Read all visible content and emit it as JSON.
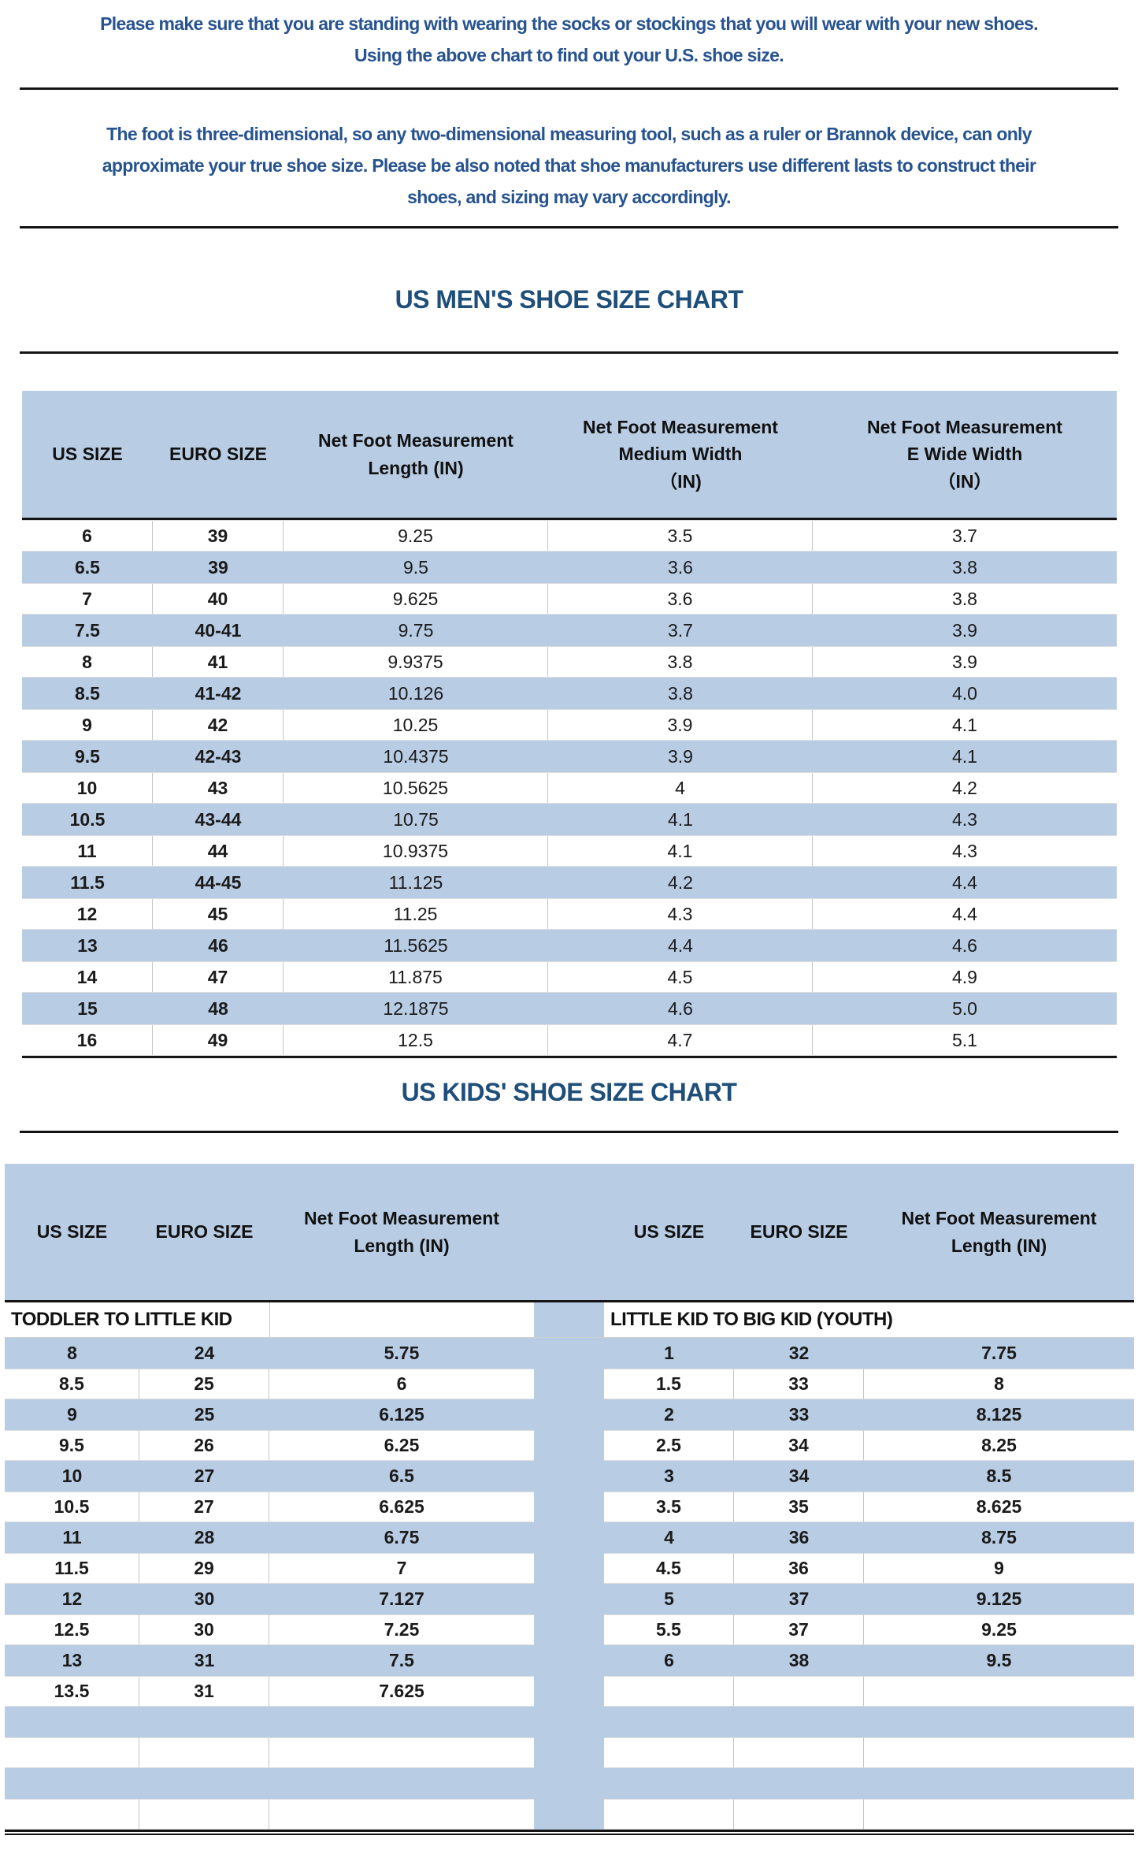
{
  "intro": {
    "line1": "Please make sure that you are standing with wearing the socks or stockings that you will wear with your new shoes.",
    "line2": "Using the above chart to find out your U.S. shoe size."
  },
  "note": {
    "line1": "The foot is three-dimensional, so any two-dimensional measuring tool, such as a ruler or Brannok device, can only",
    "line2": "approximate your true shoe size. Please be also noted that shoe manufacturers use different lasts to construct their",
    "line3": "shoes, and sizing may vary accordingly."
  },
  "mens_chart": {
    "title": "US MEN'S SHOE SIZE CHART",
    "columns": [
      "US SIZE",
      "EURO SIZE",
      "Net Foot Measurement\nLength (IN)",
      "Net Foot Measurement\nMedium Width\n（IN)",
      "Net Foot Measurement\nE Wide Width\n（IN）"
    ],
    "rows": [
      [
        "6",
        "39",
        "9.25",
        "3.5",
        "3.7"
      ],
      [
        "6.5",
        "39",
        "9.5",
        "3.6",
        "3.8"
      ],
      [
        "7",
        "40",
        "9.625",
        "3.6",
        "3.8"
      ],
      [
        "7.5",
        "40-41",
        "9.75",
        "3.7",
        "3.9"
      ],
      [
        "8",
        "41",
        "9.9375",
        "3.8",
        "3.9"
      ],
      [
        "8.5",
        "41-42",
        "10.126",
        "3.8",
        "4.0"
      ],
      [
        "9",
        "42",
        "10.25",
        "3.9",
        "4.1"
      ],
      [
        "9.5",
        "42-43",
        "10.4375",
        "3.9",
        "4.1"
      ],
      [
        "10",
        "43",
        "10.5625",
        "4",
        "4.2"
      ],
      [
        "10.5",
        "43-44",
        "10.75",
        "4.1",
        "4.3"
      ],
      [
        "11",
        "44",
        "10.9375",
        "4.1",
        "4.3"
      ],
      [
        "11.5",
        "44-45",
        "11.125",
        "4.2",
        "4.4"
      ],
      [
        "12",
        "45",
        "11.25",
        "4.3",
        "4.4"
      ],
      [
        "13",
        "46",
        "11.5625",
        "4.4",
        "4.6"
      ],
      [
        "14",
        "47",
        "11.875",
        "4.5",
        "4.9"
      ],
      [
        "15",
        "48",
        "12.1875",
        "4.6",
        "5.0"
      ],
      [
        "16",
        "49",
        "12.5",
        "4.7",
        "5.1"
      ]
    ]
  },
  "kids_chart": {
    "title": "US KIDS' SHOE SIZE CHART",
    "columns": [
      "US SIZE",
      "EURO SIZE",
      "Net Foot Measurement\nLength (IN)",
      "US SIZE",
      "EURO SIZE",
      "Net Foot Measurement\nLength (IN)"
    ],
    "left_group_label": "TODDLER TO LITTLE KID",
    "right_group_label": "LITTLE KID TO BIG KID (YOUTH)",
    "left_rows": [
      [
        "8",
        "24",
        "5.75"
      ],
      [
        "8.5",
        "25",
        "6"
      ],
      [
        "9",
        "25",
        "6.125"
      ],
      [
        "9.5",
        "26",
        "6.25"
      ],
      [
        "10",
        "27",
        "6.5"
      ],
      [
        "10.5",
        "27",
        "6.625"
      ],
      [
        "11",
        "28",
        "6.75"
      ],
      [
        "11.5",
        "29",
        "7"
      ],
      [
        "12",
        "30",
        "7.127"
      ],
      [
        "12.5",
        "30",
        "7.25"
      ],
      [
        "13",
        "31",
        "7.5"
      ],
      [
        "13.5",
        "31",
        "7.625"
      ],
      [
        "",
        "",
        ""
      ],
      [
        "",
        "",
        ""
      ],
      [
        "",
        "",
        ""
      ],
      [
        "",
        "",
        ""
      ]
    ],
    "right_rows": [
      [
        "1",
        "32",
        "7.75"
      ],
      [
        "1.5",
        "33",
        "8"
      ],
      [
        "2",
        "33",
        "8.125"
      ],
      [
        "2.5",
        "34",
        "8.25"
      ],
      [
        "3",
        "34",
        "8.5"
      ],
      [
        "3.5",
        "35",
        "8.625"
      ],
      [
        "4",
        "36",
        "8.75"
      ],
      [
        "4.5",
        "36",
        "9"
      ],
      [
        "5",
        "37",
        "9.125"
      ],
      [
        "5.5",
        "37",
        "9.25"
      ],
      [
        "6",
        "38",
        "9.5"
      ],
      [
        "",
        "",
        ""
      ],
      [
        "",
        "",
        ""
      ],
      [
        "",
        "",
        ""
      ],
      [
        "",
        "",
        ""
      ],
      [
        "",
        "",
        ""
      ]
    ]
  },
  "colors": {
    "row_blue": "#b8cce4",
    "title_navy": "#1f4e79",
    "paragraph_navy": "#27538f",
    "line_black": "#141414"
  }
}
